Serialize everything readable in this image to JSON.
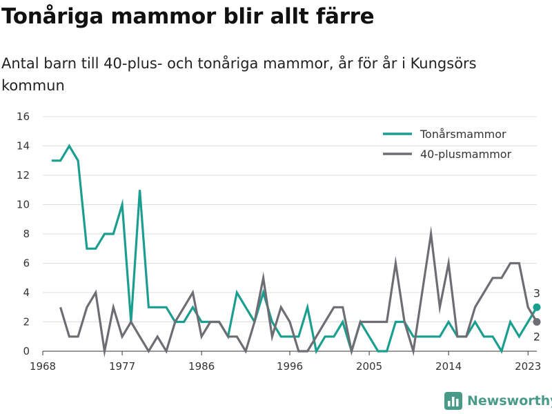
{
  "header": {
    "title": "Tonåriga mammor blir allt färre",
    "subtitle": "Antal barn till 40-plus- och tonåriga mammor, år för år i Kungsörs kommun"
  },
  "brand": {
    "name": "Newsworthy"
  },
  "colors": {
    "teal": "#1a9e8f",
    "gray": "#6d6d73",
    "grid": "#dddddd",
    "brand": "#4a9a8a"
  },
  "chart_data": {
    "type": "line",
    "title": "",
    "xlabel": "",
    "ylabel": "",
    "xlim": [
      1968,
      2024
    ],
    "ylim": [
      0,
      16
    ],
    "x_ticks": [
      1968,
      1977,
      1986,
      1996,
      2005,
      2014,
      2023
    ],
    "y_ticks": [
      0,
      2,
      4,
      6,
      8,
      10,
      12,
      14,
      16
    ],
    "grid": "horizontal",
    "legend_position": "top-right",
    "series": [
      {
        "name": "Tonårsmammor",
        "color": "#1a9e8f",
        "x": [
          1969,
          1970,
          1971,
          1972,
          1973,
          1974,
          1975,
          1976,
          1977,
          1978,
          1979,
          1980,
          1981,
          1982,
          1983,
          1984,
          1985,
          1986,
          1987,
          1988,
          1989,
          1990,
          1991,
          1992,
          1993,
          1994,
          1995,
          1996,
          1997,
          1998,
          1999,
          2000,
          2001,
          2002,
          2003,
          2004,
          2005,
          2006,
          2007,
          2008,
          2009,
          2010,
          2011,
          2012,
          2013,
          2014,
          2015,
          2016,
          2017,
          2018,
          2019,
          2020,
          2021,
          2022,
          2023,
          2024
        ],
        "values": [
          13,
          13,
          14,
          13,
          7,
          7,
          8,
          8,
          10,
          2,
          11,
          3,
          3,
          3,
          2,
          2,
          3,
          2,
          2,
          2,
          1,
          4,
          3,
          2,
          4,
          2,
          1,
          1,
          1,
          3,
          0,
          1,
          1,
          2,
          0,
          2,
          1,
          0,
          0,
          2,
          2,
          1,
          1,
          1,
          1,
          2,
          1,
          1,
          2,
          1,
          1,
          0,
          2,
          1,
          2,
          3
        ],
        "end_label": "3"
      },
      {
        "name": "40-plusmammor",
        "color": "#6d6d73",
        "x": [
          1970,
          1971,
          1972,
          1973,
          1974,
          1975,
          1976,
          1977,
          1978,
          1979,
          1980,
          1981,
          1982,
          1983,
          1984,
          1985,
          1986,
          1987,
          1988,
          1989,
          1990,
          1991,
          1992,
          1993,
          1994,
          1995,
          1996,
          1997,
          1998,
          1999,
          2000,
          2001,
          2002,
          2003,
          2004,
          2005,
          2006,
          2007,
          2008,
          2009,
          2010,
          2011,
          2012,
          2013,
          2014,
          2015,
          2016,
          2017,
          2018,
          2019,
          2020,
          2021,
          2022,
          2023,
          2024
        ],
        "values": [
          3,
          1,
          1,
          3,
          4,
          0,
          3,
          1,
          2,
          1,
          0,
          1,
          0,
          2,
          3,
          4,
          1,
          2,
          2,
          1,
          1,
          0,
          2,
          5,
          1,
          3,
          2,
          0,
          0,
          1,
          2,
          3,
          3,
          0,
          2,
          2,
          2,
          2,
          6,
          2,
          0,
          4,
          8,
          3,
          6,
          1,
          1,
          3,
          4,
          5,
          5,
          6,
          6,
          3,
          2
        ],
        "end_label": "2"
      }
    ]
  }
}
